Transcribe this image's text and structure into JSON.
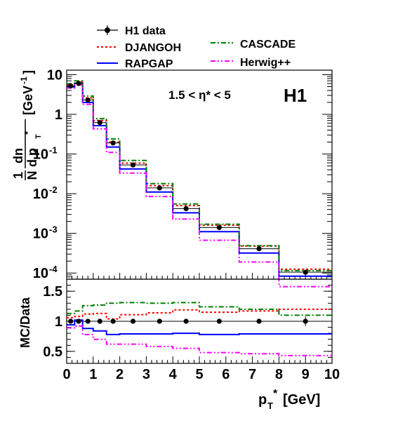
{
  "chart_data": [
    {
      "type": "histogram",
      "panel": "upper",
      "experiment_label": "H1",
      "annotation": "1.5 < η* < 5",
      "ylabel_fraction_top": "1",
      "ylabel_fraction_bottom": "N",
      "ylabel_dn": "dn",
      "ylabel_dpt": "d p",
      "ylabel_unit": "[GeV",
      "ylabel_unit_exp": "-1",
      "ylabel_unit_close": "]",
      "log_y": true,
      "ylim": [
        7e-05,
        13
      ],
      "xlim": [
        0,
        10
      ],
      "bin_edges": [
        0,
        0.3,
        0.6,
        1.0,
        1.5,
        2.0,
        3.0,
        4.0,
        5.0,
        6.5,
        8.0,
        10.0
      ],
      "y_ticks": [
        {
          "value": 10,
          "label": "10"
        },
        {
          "value": 1,
          "label": "1"
        },
        {
          "value": 0.1,
          "label": "10",
          "exp": "-1"
        },
        {
          "value": 0.01,
          "label": "10",
          "exp": "-2"
        },
        {
          "value": 0.001,
          "label": "10",
          "exp": "-3"
        },
        {
          "value": 0.0001,
          "label": "10",
          "exp": "-4"
        }
      ],
      "data": {
        "name": "H1 data",
        "x": [
          0.15,
          0.45,
          0.8,
          1.25,
          1.75,
          2.5,
          3.5,
          4.5,
          5.75,
          7.25,
          9.0
        ],
        "y": [
          5.2,
          6.0,
          2.3,
          0.62,
          0.19,
          0.053,
          0.014,
          0.0042,
          0.0014,
          0.00041,
          0.000105
        ]
      },
      "series": [
        {
          "name": "DJANGOH",
          "color": "#ff0000",
          "style": "dotted",
          "values": [
            5.5,
            6.5,
            2.6,
            0.7,
            0.2,
            0.059,
            0.016,
            0.005,
            0.0016,
            0.00048,
            0.000125
          ]
        },
        {
          "name": "RAPGAP",
          "color": "#0000ff",
          "style": "solid",
          "values": [
            4.9,
            6.1,
            2.0,
            0.52,
            0.15,
            0.042,
            0.011,
            0.0033,
            0.0011,
            0.00032,
            8.3e-05
          ]
        },
        {
          "name": "CASCADE",
          "color": "#008000",
          "style": "dashdot",
          "values": [
            5.9,
            7.0,
            2.9,
            0.78,
            0.24,
            0.069,
            0.018,
            0.0055,
            0.0017,
            0.00049,
            0.000115
          ]
        },
        {
          "name": "Herwig++",
          "color": "#ff00ff",
          "style": "dashdotdot",
          "values": [
            4.6,
            5.5,
            1.8,
            0.43,
            0.11,
            0.033,
            0.0085,
            0.0023,
            0.00067,
            0.00019,
            4.55e-05
          ]
        }
      ],
      "legend_placement": "top"
    },
    {
      "type": "histogram",
      "panel": "lower",
      "ylabel": "MC/Data",
      "xlabel_main": "p",
      "xlabel_sub": "T",
      "xlabel_sup": "*",
      "xlabel_unit": "[GeV]",
      "ylim": [
        0.3,
        1.7
      ],
      "xlim": [
        0,
        10
      ],
      "x_ticks": [
        "0",
        "1",
        "2",
        "3",
        "4",
        "5",
        "6",
        "7",
        "8",
        "9",
        "10"
      ],
      "y_ticks": [
        {
          "value": 1.5,
          "label": "1.5"
        },
        {
          "value": 1.0,
          "label": "1"
        },
        {
          "value": 0.5,
          "label": "0.5"
        }
      ],
      "bin_edges": [
        0,
        0.3,
        0.6,
        1.0,
        1.5,
        2.0,
        3.0,
        4.0,
        5.0,
        6.5,
        8.0,
        10.0
      ],
      "data": {
        "name": "H1 data",
        "x": [
          0.15,
          0.45,
          0.8,
          1.25,
          1.75,
          2.5,
          3.5,
          4.5,
          5.75,
          7.25,
          9.0
        ],
        "y": [
          1,
          1,
          1,
          1,
          1,
          1,
          1,
          1,
          1,
          1,
          1
        ],
        "err": [
          0.02,
          0.02,
          0.02,
          0.02,
          0.02,
          0.02,
          0.02,
          0.02,
          0.03,
          0.04,
          0.08
        ]
      },
      "series": [
        {
          "name": "DJANGOH",
          "color": "#ff0000",
          "style": "dotted",
          "values": [
            1.06,
            1.08,
            1.12,
            1.13,
            1.04,
            1.11,
            1.14,
            1.19,
            1.15,
            1.17,
            1.2
          ]
        },
        {
          "name": "RAPGAP",
          "color": "#0000ff",
          "style": "solid",
          "values": [
            0.94,
            1.02,
            0.88,
            0.84,
            0.78,
            0.79,
            0.79,
            0.8,
            0.78,
            0.79,
            0.79
          ]
        },
        {
          "name": "CASCADE",
          "color": "#008000",
          "style": "dashdot",
          "values": [
            1.13,
            1.17,
            1.26,
            1.27,
            1.3,
            1.31,
            1.3,
            1.31,
            1.24,
            1.2,
            1.1
          ]
        },
        {
          "name": "Herwig++",
          "color": "#ff00ff",
          "style": "dashdotdot",
          "values": [
            0.89,
            0.92,
            0.78,
            0.7,
            0.62,
            0.62,
            0.58,
            0.55,
            0.48,
            0.46,
            0.43
          ]
        }
      ]
    }
  ]
}
